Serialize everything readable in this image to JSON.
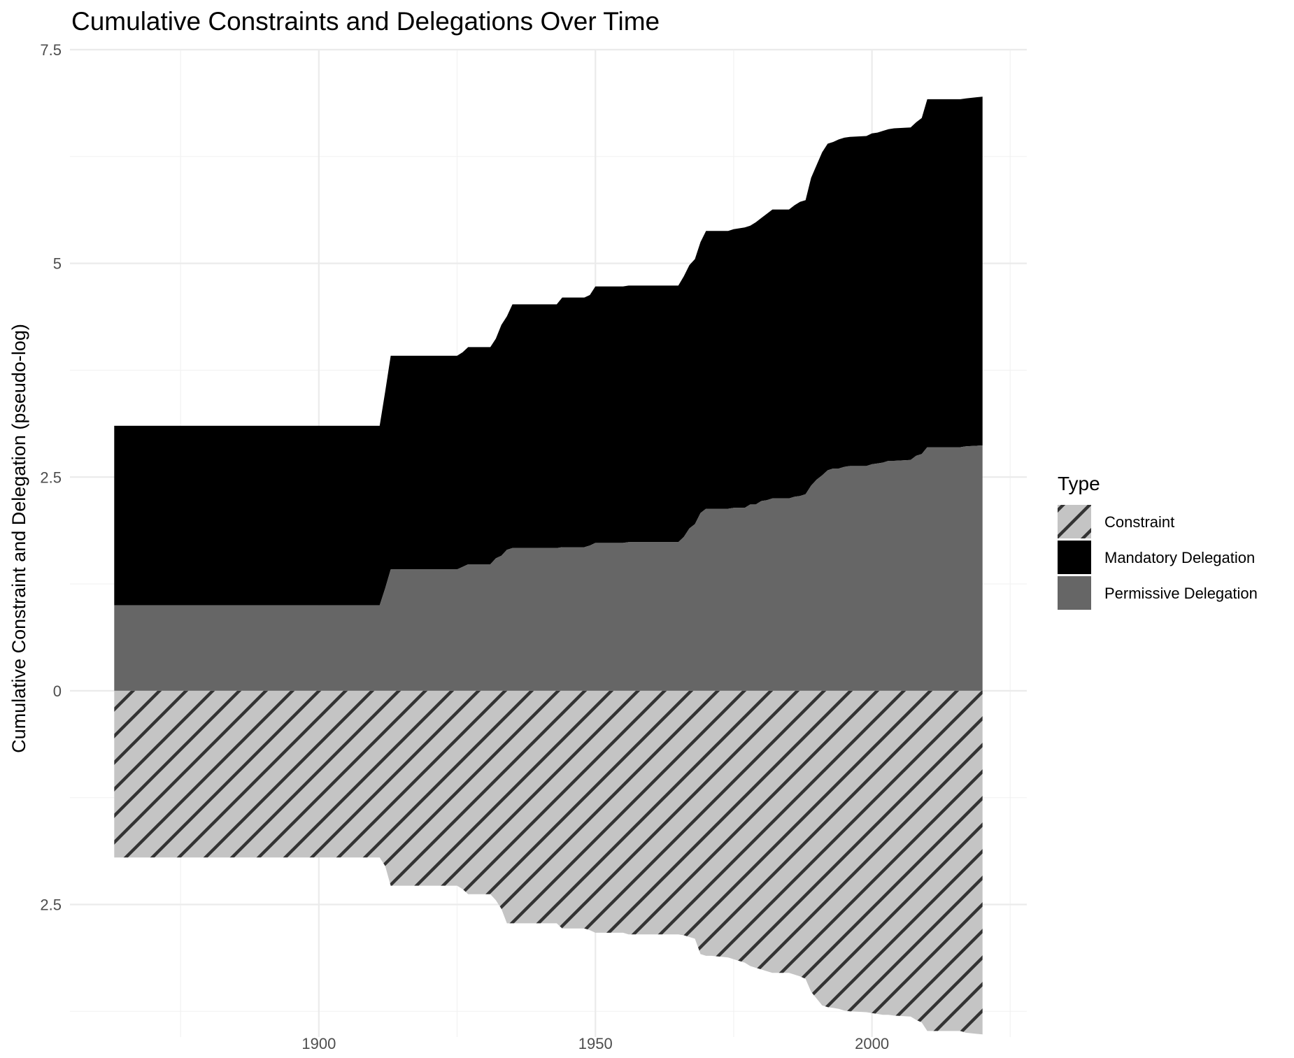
{
  "chart_data": {
    "type": "area",
    "title": "Cumulative Constraints and Delegations Over Time",
    "xlabel": "",
    "ylabel": "Cumulative Constraint and Delegation (pseudo-log)",
    "xlim": [
      1855,
      2028
    ],
    "ylim": [
      -4.05,
      7.5
    ],
    "y_scale": "pseudo-log",
    "grid": true,
    "x_ticks": [
      1900,
      1950,
      2000
    ],
    "x_tick_labels": [
      "1900",
      "1950",
      "2000"
    ],
    "y_ticks": [
      7.5,
      5,
      2.5,
      0,
      -2.5
    ],
    "y_tick_labels": [
      "7.5",
      "5",
      "2.5",
      "0",
      "2.5"
    ],
    "legend": {
      "title": "Type",
      "position": "right",
      "entries": [
        "Constraint",
        "Mandatory Delegation",
        "Permissive Delegation"
      ]
    },
    "colors": {
      "Constraint": "#c4c4c4",
      "Constraint_hatch": "#333333",
      "Mandatory Delegation": "#000000",
      "Permissive Delegation": "#666666"
    },
    "x": [
      1863,
      1911,
      1912,
      1913,
      1920,
      1925,
      1926,
      1927,
      1931,
      1932,
      1933,
      1934,
      1935,
      1943,
      1944,
      1948,
      1949,
      1950,
      1955,
      1956,
      1965,
      1966,
      1967,
      1968,
      1969,
      1970,
      1971,
      1974,
      1975,
      1977,
      1978,
      1979,
      1980,
      1981,
      1982,
      1985,
      1986,
      1987,
      1988,
      1989,
      1990,
      1991,
      1992,
      1993,
      1994,
      1995,
      1996,
      1999,
      2000,
      2001,
      2002,
      2003,
      2004,
      2007,
      2008,
      2009,
      2010,
      2016,
      2017,
      2020
    ],
    "series": [
      {
        "name": "Permissive Delegation",
        "values": [
          1.0,
          1.0,
          1.2,
          1.42,
          1.42,
          1.42,
          1.45,
          1.48,
          1.48,
          1.55,
          1.58,
          1.65,
          1.67,
          1.67,
          1.68,
          1.68,
          1.7,
          1.73,
          1.73,
          1.74,
          1.74,
          1.8,
          1.9,
          1.95,
          2.08,
          2.13,
          2.13,
          2.13,
          2.14,
          2.14,
          2.18,
          2.18,
          2.22,
          2.23,
          2.25,
          2.25,
          2.27,
          2.28,
          2.3,
          2.4,
          2.47,
          2.52,
          2.58,
          2.6,
          2.6,
          2.62,
          2.63,
          2.63,
          2.65,
          2.66,
          2.67,
          2.69,
          2.69,
          2.7,
          2.75,
          2.77,
          2.85,
          2.85,
          2.86,
          2.87
        ]
      },
      {
        "name": "Mandatory Delegation",
        "values": [
          3.1,
          3.1,
          3.5,
          3.92,
          3.92,
          3.92,
          3.96,
          4.02,
          4.02,
          4.12,
          4.28,
          4.38,
          4.52,
          4.52,
          4.6,
          4.6,
          4.63,
          4.73,
          4.73,
          4.74,
          4.74,
          4.85,
          4.98,
          5.05,
          5.25,
          5.38,
          5.38,
          5.38,
          5.4,
          5.42,
          5.44,
          5.48,
          5.53,
          5.58,
          5.63,
          5.63,
          5.68,
          5.72,
          5.74,
          6.0,
          6.15,
          6.3,
          6.4,
          6.42,
          6.45,
          6.47,
          6.48,
          6.49,
          6.52,
          6.53,
          6.55,
          6.57,
          6.58,
          6.59,
          6.65,
          6.7,
          6.92,
          6.92,
          6.93,
          6.95
        ]
      },
      {
        "name": "Constraint",
        "values": [
          -1.95,
          -1.95,
          -2.05,
          -2.28,
          -2.28,
          -2.28,
          -2.32,
          -2.38,
          -2.38,
          -2.45,
          -2.55,
          -2.72,
          -2.72,
          -2.72,
          -2.78,
          -2.78,
          -2.8,
          -2.83,
          -2.83,
          -2.85,
          -2.85,
          -2.86,
          -2.88,
          -2.9,
          -3.08,
          -3.1,
          -3.1,
          -3.12,
          -3.14,
          -3.18,
          -3.22,
          -3.24,
          -3.26,
          -3.28,
          -3.3,
          -3.3,
          -3.32,
          -3.34,
          -3.37,
          -3.52,
          -3.6,
          -3.68,
          -3.7,
          -3.71,
          -3.72,
          -3.74,
          -3.75,
          -3.76,
          -3.77,
          -3.78,
          -3.79,
          -3.79,
          -3.8,
          -3.81,
          -3.85,
          -3.88,
          -3.98,
          -3.98,
          -4.0,
          -4.02
        ]
      }
    ]
  }
}
